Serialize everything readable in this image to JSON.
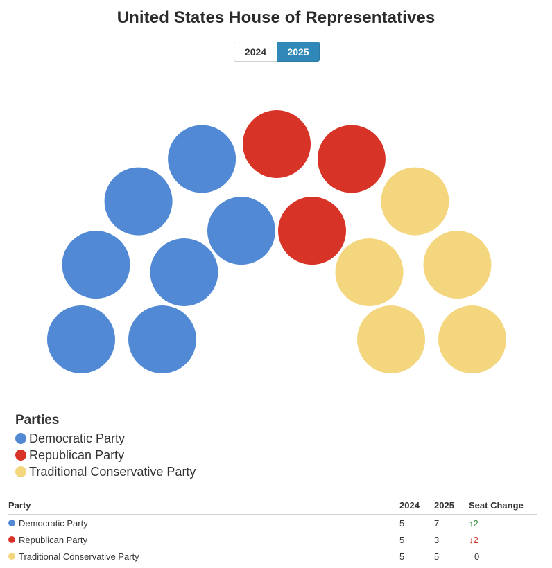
{
  "title": "United States House of Representatives",
  "toggle": {
    "options": [
      "2024",
      "2025"
    ],
    "selected": "2025"
  },
  "colors": {
    "Democratic Party": "#5189d4",
    "Republican Party": "#d83327",
    "Traditional Conservative Party": "#f4d67e"
  },
  "chart_data": {
    "type": "parliament",
    "title": "United States House of Representatives",
    "year": "2025",
    "seats_total": 15,
    "rows": 2,
    "seats": [
      {
        "party": "Democratic Party",
        "count": 7
      },
      {
        "party": "Republican Party",
        "count": 3
      },
      {
        "party": "Traditional Conservative Party",
        "count": 5
      }
    ]
  },
  "legend": {
    "title": "Parties",
    "items": [
      "Democratic Party",
      "Republican Party",
      "Traditional Conservative Party"
    ]
  },
  "table": {
    "headers": [
      "Party",
      "2024",
      "2025",
      "Seat Change"
    ],
    "rows": [
      {
        "party": "Democratic Party",
        "y2024": "5",
        "y2025": "7",
        "change": "↑2",
        "dir": "up"
      },
      {
        "party": "Republican Party",
        "y2024": "5",
        "y2025": "3",
        "change": "↓2",
        "dir": "down"
      },
      {
        "party": "Traditional Conservative Party",
        "y2024": "5",
        "y2025": "5",
        "change": "0",
        "dir": "zero"
      }
    ]
  }
}
